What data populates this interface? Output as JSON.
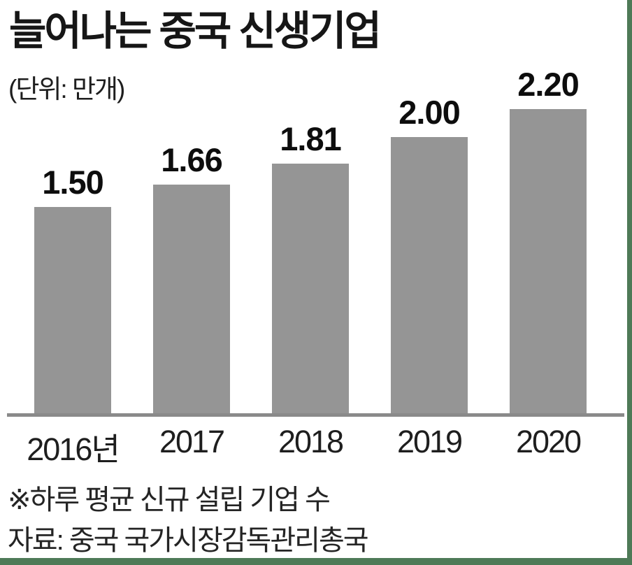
{
  "header": {
    "title": "늘어나는 중국 신생기업",
    "unit": "(단위: 만개)"
  },
  "chart_data": {
    "type": "bar",
    "title": "늘어나는 중국 신생기업",
    "unit_label": "(단위: 만개)",
    "categories": [
      "2016년",
      "2017",
      "2018",
      "2019",
      "2020"
    ],
    "values": [
      1.5,
      1.66,
      1.81,
      2.0,
      2.2
    ],
    "value_labels": [
      "1.50",
      "1.66",
      "1.81",
      "2.00",
      "2.20"
    ],
    "xlabel": "",
    "ylabel": "",
    "ylim": [
      0,
      2.4
    ],
    "grid": "off",
    "legend": "none",
    "bar_color": "#959595",
    "axis_color": "#8a8a8a",
    "value_label_color": "#0d0d0d"
  },
  "footer": {
    "note": "※하루 평균 신규 설립 기업 수",
    "source": "자료: 중국 국가시장감독관리총국"
  },
  "frame": {
    "border_color": "#4e7a57",
    "background": "#ffffff"
  }
}
